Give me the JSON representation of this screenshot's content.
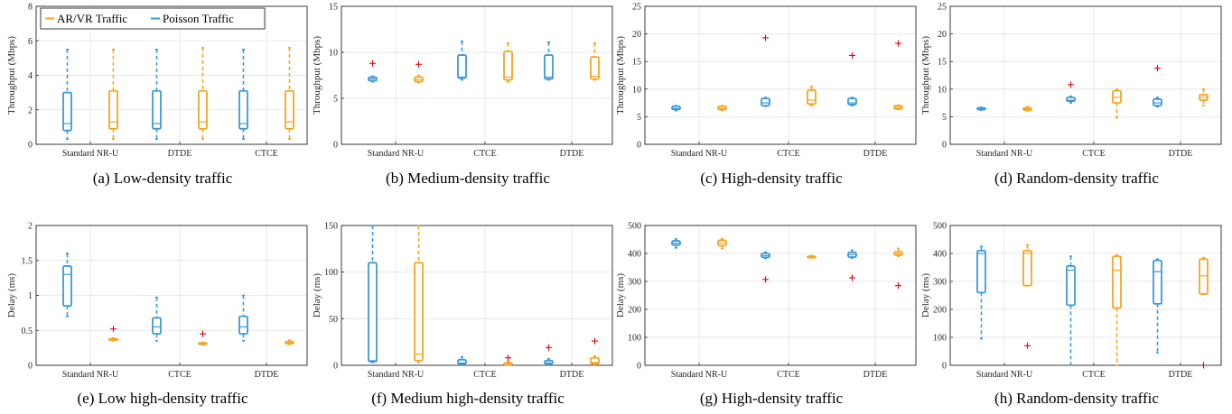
{
  "colors": {
    "ar_vr": "#F5A623",
    "poisson": "#3C9AD9",
    "outlier": "#E8000B",
    "grid": "#E3E3E3",
    "axis": "#262626"
  },
  "legend": {
    "ar_vr": "AR/VR Traffic",
    "poisson": "Poisson Traffic"
  },
  "chart_data": [
    {
      "type": "box",
      "title": "",
      "caption": "(a) Low-density traffic",
      "ylabel": "Throughput (Mbps)",
      "ylim": [
        0,
        8
      ],
      "yticks": [
        0,
        2,
        4,
        6,
        8
      ],
      "categories": [
        "Standard NR-U",
        "DTDE",
        "CTCE"
      ],
      "boxes": [
        {
          "series": "poisson",
          "cat": 0,
          "min": 0.3,
          "q1": 0.8,
          "med": 1.2,
          "q3": 3.0,
          "max": 5.5,
          "outliers": []
        },
        {
          "series": "ar_vr",
          "cat": 0,
          "min": 0.3,
          "q1": 0.9,
          "med": 1.3,
          "q3": 3.1,
          "max": 5.5,
          "outliers": []
        },
        {
          "series": "poisson",
          "cat": 1,
          "min": 0.3,
          "q1": 0.9,
          "med": 1.2,
          "q3": 3.1,
          "max": 5.5,
          "outliers": []
        },
        {
          "series": "ar_vr",
          "cat": 1,
          "min": 0.3,
          "q1": 0.9,
          "med": 1.3,
          "q3": 3.1,
          "max": 5.6,
          "outliers": []
        },
        {
          "series": "poisson",
          "cat": 2,
          "min": 0.3,
          "q1": 0.9,
          "med": 1.2,
          "q3": 3.1,
          "max": 5.5,
          "outliers": []
        },
        {
          "series": "ar_vr",
          "cat": 2,
          "min": 0.3,
          "q1": 0.9,
          "med": 1.3,
          "q3": 3.1,
          "max": 5.6,
          "outliers": []
        }
      ]
    },
    {
      "type": "box",
      "title": "",
      "caption": "(b) Medium-density traffic",
      "ylabel": "Throughput (Mbps)",
      "ylim": [
        0,
        15
      ],
      "yticks": [
        0,
        5,
        10,
        15
      ],
      "categories": [
        "Standard NR-U",
        "CTCE",
        "DTDE"
      ],
      "boxes": [
        {
          "series": "poisson",
          "cat": 0,
          "min": 6.8,
          "q1": 6.9,
          "med": 7.1,
          "q3": 7.3,
          "max": 7.4,
          "outliers": [
            8.8
          ]
        },
        {
          "series": "ar_vr",
          "cat": 0,
          "min": 6.7,
          "q1": 6.8,
          "med": 7.0,
          "q3": 7.3,
          "max": 7.5,
          "outliers": [
            8.7
          ]
        },
        {
          "series": "poisson",
          "cat": 1,
          "min": 7.0,
          "q1": 7.2,
          "med": 7.3,
          "q3": 9.7,
          "max": 11.2,
          "outliers": []
        },
        {
          "series": "ar_vr",
          "cat": 1,
          "min": 6.8,
          "q1": 7.0,
          "med": 7.3,
          "q3": 10.1,
          "max": 11.0,
          "outliers": []
        },
        {
          "series": "poisson",
          "cat": 2,
          "min": 7.0,
          "q1": 7.1,
          "med": 7.3,
          "q3": 9.7,
          "max": 11.1,
          "outliers": []
        },
        {
          "series": "ar_vr",
          "cat": 2,
          "min": 7.0,
          "q1": 7.1,
          "med": 7.4,
          "q3": 9.5,
          "max": 11.0,
          "outliers": []
        }
      ]
    },
    {
      "type": "box",
      "title": "",
      "caption": "(c) High-density traffic",
      "ylabel": "Throughput (Mbps)",
      "ylim": [
        0,
        25
      ],
      "yticks": [
        0,
        5,
        10,
        15,
        20,
        25
      ],
      "categories": [
        "Standard NR-U",
        "CTCE",
        "DTDE"
      ],
      "boxes": [
        {
          "series": "poisson",
          "cat": 0,
          "min": 6.1,
          "q1": 6.3,
          "med": 6.5,
          "q3": 6.9,
          "max": 7.0,
          "outliers": []
        },
        {
          "series": "ar_vr",
          "cat": 0,
          "min": 6.1,
          "q1": 6.3,
          "med": 6.5,
          "q3": 6.9,
          "max": 7.0,
          "outliers": []
        },
        {
          "series": "poisson",
          "cat": 1,
          "min": 6.9,
          "q1": 7.0,
          "med": 7.5,
          "q3": 8.3,
          "max": 8.5,
          "outliers": [
            19.3
          ]
        },
        {
          "series": "ar_vr",
          "cat": 1,
          "min": 7.0,
          "q1": 7.3,
          "med": 8.0,
          "q3": 9.8,
          "max": 10.5,
          "outliers": []
        },
        {
          "series": "poisson",
          "cat": 2,
          "min": 7.0,
          "q1": 7.2,
          "med": 7.5,
          "q3": 8.3,
          "max": 8.5,
          "outliers": [
            16.1
          ]
        },
        {
          "series": "ar_vr",
          "cat": 2,
          "min": 6.3,
          "q1": 6.4,
          "med": 6.7,
          "q3": 7.0,
          "max": 7.1,
          "outliers": [
            18.3
          ]
        }
      ]
    },
    {
      "type": "box",
      "title": "",
      "caption": "(d) Random-density traffic",
      "ylabel": "Throughput (Mbps)",
      "ylim": [
        0,
        25
      ],
      "yticks": [
        0,
        5,
        10,
        15,
        20,
        25
      ],
      "categories": [
        "Standard NR-U",
        "CTCE",
        "DTDE"
      ],
      "boxes": [
        {
          "series": "poisson",
          "cat": 0,
          "min": 6.2,
          "q1": 6.3,
          "med": 6.4,
          "q3": 6.6,
          "max": 6.7,
          "outliers": []
        },
        {
          "series": "ar_vr",
          "cat": 0,
          "min": 6.1,
          "q1": 6.2,
          "med": 6.4,
          "q3": 6.6,
          "max": 6.8,
          "outliers": []
        },
        {
          "series": "poisson",
          "cat": 1,
          "min": 7.5,
          "q1": 7.8,
          "med": 8.0,
          "q3": 8.5,
          "max": 8.7,
          "outliers": [
            10.8
          ]
        },
        {
          "series": "ar_vr",
          "cat": 1,
          "min": 4.8,
          "q1": 7.5,
          "med": 8.5,
          "q3": 9.7,
          "max": 10.0,
          "outliers": []
        },
        {
          "series": "poisson",
          "cat": 2,
          "min": 6.8,
          "q1": 7.0,
          "med": 7.5,
          "q3": 8.2,
          "max": 8.5,
          "outliers": [
            13.8
          ]
        },
        {
          "series": "ar_vr",
          "cat": 2,
          "min": 7.0,
          "q1": 8.0,
          "med": 8.5,
          "q3": 9.0,
          "max": 10.0,
          "outliers": []
        }
      ]
    },
    {
      "type": "box",
      "title": "",
      "caption": "(e) Low high-density traffic",
      "ylabel": "Delay (ms)",
      "ylim": [
        0,
        2
      ],
      "yticks": [
        0,
        0.5,
        1,
        1.5,
        2
      ],
      "categories": [
        "Standard NR-U",
        "CTCE",
        "DTDE"
      ],
      "boxes": [
        {
          "series": "poisson",
          "cat": 0,
          "min": 0.7,
          "q1": 0.85,
          "med": 1.3,
          "q3": 1.42,
          "max": 1.6,
          "outliers": []
        },
        {
          "series": "ar_vr",
          "cat": 0,
          "min": 0.35,
          "q1": 0.36,
          "med": 0.37,
          "q3": 0.38,
          "max": 0.39,
          "outliers": [
            0.52
          ]
        },
        {
          "series": "poisson",
          "cat": 1,
          "min": 0.35,
          "q1": 0.45,
          "med": 0.55,
          "q3": 0.68,
          "max": 0.97,
          "outliers": []
        },
        {
          "series": "ar_vr",
          "cat": 1,
          "min": 0.29,
          "q1": 0.3,
          "med": 0.31,
          "q3": 0.32,
          "max": 0.33,
          "outliers": [
            0.45
          ]
        },
        {
          "series": "poisson",
          "cat": 2,
          "min": 0.35,
          "q1": 0.45,
          "med": 0.55,
          "q3": 0.7,
          "max": 1.0,
          "outliers": []
        },
        {
          "series": "ar_vr",
          "cat": 2,
          "min": 0.3,
          "q1": 0.31,
          "med": 0.32,
          "q3": 0.34,
          "max": 0.36,
          "outliers": []
        }
      ]
    },
    {
      "type": "box",
      "title": "",
      "caption": "(f) Medium high-density traffic",
      "ylabel": "Delay (ms)",
      "ylim": [
        0,
        150
      ],
      "yticks": [
        0,
        50,
        100,
        150
      ],
      "categories": [
        "Standard NR-U",
        "CTCE",
        "DTDE"
      ],
      "boxes": [
        {
          "series": "poisson",
          "cat": 0,
          "min": 3,
          "q1": 4,
          "med": 5,
          "q3": 110,
          "max": 150,
          "outliers": []
        },
        {
          "series": "ar_vr",
          "cat": 0,
          "min": 3,
          "q1": 5,
          "med": 12,
          "q3": 110,
          "max": 150,
          "outliers": []
        },
        {
          "series": "poisson",
          "cat": 1,
          "min": 0.5,
          "q1": 1.5,
          "med": 2.5,
          "q3": 6,
          "max": 9,
          "outliers": []
        },
        {
          "series": "ar_vr",
          "cat": 1,
          "min": 0.2,
          "q1": 0.5,
          "med": 1.0,
          "q3": 2.5,
          "max": 4,
          "outliers": [
            8
          ]
        },
        {
          "series": "poisson",
          "cat": 2,
          "min": 0.5,
          "q1": 1.5,
          "med": 2.5,
          "q3": 5,
          "max": 7,
          "outliers": [
            19
          ]
        },
        {
          "series": "ar_vr",
          "cat": 2,
          "min": 0.5,
          "q1": 1.5,
          "med": 3,
          "q3": 8,
          "max": 10,
          "outliers": [
            26
          ]
        }
      ]
    },
    {
      "type": "box",
      "title": "",
      "caption": "(g) High-density traffic",
      "ylabel": "Delay (ms)",
      "ylim": [
        0,
        500
      ],
      "yticks": [
        0,
        100,
        200,
        300,
        400,
        500
      ],
      "categories": [
        "Standard NR-U",
        "CTCE",
        "DTDE"
      ],
      "boxes": [
        {
          "series": "poisson",
          "cat": 0,
          "min": 420,
          "q1": 430,
          "med": 437,
          "q3": 445,
          "max": 452,
          "outliers": []
        },
        {
          "series": "ar_vr",
          "cat": 0,
          "min": 418,
          "q1": 428,
          "med": 437,
          "q3": 447,
          "max": 453,
          "outliers": []
        },
        {
          "series": "poisson",
          "cat": 1,
          "min": 382,
          "q1": 386,
          "med": 392,
          "q3": 400,
          "max": 405,
          "outliers": [
            307
          ]
        },
        {
          "series": "ar_vr",
          "cat": 1,
          "min": 384,
          "q1": 386,
          "med": 388,
          "q3": 390,
          "max": 392,
          "outliers": []
        },
        {
          "series": "poisson",
          "cat": 2,
          "min": 383,
          "q1": 387,
          "med": 396,
          "q3": 404,
          "max": 412,
          "outliers": [
            313
          ]
        },
        {
          "series": "ar_vr",
          "cat": 2,
          "min": 390,
          "q1": 394,
          "med": 399,
          "q3": 406,
          "max": 418,
          "outliers": [
            285
          ]
        }
      ]
    },
    {
      "type": "box",
      "title": "",
      "caption": "(h) Random-density traffic",
      "ylabel": "Delay (ms)",
      "ylim": [
        0,
        500
      ],
      "yticks": [
        0,
        100,
        200,
        300,
        400,
        500
      ],
      "categories": [
        "Standard NR-U",
        "CTCE",
        "DTDE"
      ],
      "boxes": [
        {
          "series": "poisson",
          "cat": 0,
          "min": 95,
          "q1": 260,
          "med": 400,
          "q3": 410,
          "max": 425,
          "outliers": []
        },
        {
          "series": "ar_vr",
          "cat": 0,
          "min": 285,
          "q1": 285,
          "med": 400,
          "q3": 410,
          "max": 430,
          "outliers": [
            70
          ]
        },
        {
          "series": "poisson",
          "cat": 1,
          "min": 0,
          "q1": 215,
          "med": 340,
          "q3": 355,
          "max": 390,
          "outliers": []
        },
        {
          "series": "ar_vr",
          "cat": 1,
          "min": 0,
          "q1": 205,
          "med": 340,
          "q3": 390,
          "max": 395,
          "outliers": []
        },
        {
          "series": "poisson",
          "cat": 2,
          "min": 45,
          "q1": 220,
          "med": 335,
          "q3": 375,
          "max": 380,
          "outliers": []
        },
        {
          "series": "ar_vr",
          "cat": 2,
          "min": 255,
          "q1": 255,
          "med": 320,
          "q3": 380,
          "max": 385,
          "outliers": [
            0
          ]
        }
      ]
    }
  ]
}
